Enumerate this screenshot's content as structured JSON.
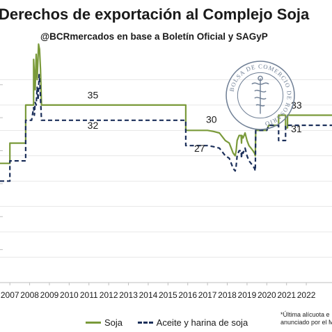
{
  "header": {
    "title": "Derechos de exportación al Complejo Soja",
    "subtitle": "@BCRmercados en base a Boletín Oficial y SAGyP"
  },
  "seal": {
    "text": "BOLSA DE COMERCIO DE ROSARIO",
    "color": "#6f7f95"
  },
  "footnote": {
    "line1": "*Última alícuota e",
    "line2": "anunciado por el M"
  },
  "colors": {
    "soja": "#7a9a3a",
    "aceite": "#1b2f5a",
    "grid": "#d9d9d9",
    "axis": "#bfbfbf"
  },
  "chart_data": {
    "type": "line",
    "title": "Derechos de exportación al Complejo Soja",
    "xlabel": "",
    "ylabel": "",
    "xlim": [
      2006.5,
      2023.3
    ],
    "ylim": [
      0,
      45
    ],
    "grid": true,
    "legend_position": "bottom",
    "x_ticks": [
      2007,
      2008,
      2009,
      2010,
      2011,
      2012,
      2013,
      2014,
      2015,
      2016,
      2017,
      2018,
      2019,
      2020,
      2021,
      2022
    ],
    "series": [
      {
        "name": "Soja",
        "color": "#7a9a3a",
        "dash": "solid",
        "points": [
          [
            2006.5,
            23.5
          ],
          [
            2007.0,
            23.5
          ],
          [
            2007.0,
            27.5
          ],
          [
            2007.8,
            27.5
          ],
          [
            2007.8,
            35
          ],
          [
            2008.2,
            35
          ],
          [
            2008.2,
            44
          ],
          [
            2008.28,
            38
          ],
          [
            2008.33,
            45
          ],
          [
            2008.38,
            40
          ],
          [
            2008.45,
            47
          ],
          [
            2008.5,
            46
          ],
          [
            2008.55,
            42
          ],
          [
            2008.6,
            35
          ],
          [
            2015.9,
            35
          ],
          [
            2015.9,
            30
          ],
          [
            2017.0,
            30
          ],
          [
            2017.3,
            29.8
          ],
          [
            2017.6,
            29.5
          ],
          [
            2017.9,
            28
          ],
          [
            2018.1,
            27.5
          ],
          [
            2018.2,
            26.5
          ],
          [
            2018.3,
            25.5
          ],
          [
            2018.4,
            25
          ],
          [
            2018.45,
            26
          ],
          [
            2018.5,
            28
          ],
          [
            2018.55,
            28.5
          ],
          [
            2018.6,
            29
          ],
          [
            2018.7,
            29
          ],
          [
            2018.72,
            27.5
          ],
          [
            2018.74,
            29
          ],
          [
            2018.8,
            28.5
          ],
          [
            2018.9,
            29.5
          ],
          [
            2019.0,
            28
          ],
          [
            2019.1,
            27
          ],
          [
            2019.2,
            26.5
          ],
          [
            2019.3,
            26
          ],
          [
            2019.38,
            25.5
          ],
          [
            2019.42,
            25
          ],
          [
            2019.44,
            30
          ],
          [
            2020.0,
            30
          ],
          [
            2020.1,
            31
          ],
          [
            2020.6,
            31
          ],
          [
            2020.6,
            33
          ],
          [
            2020.95,
            33
          ],
          [
            2020.95,
            30.5
          ],
          [
            2021.05,
            30.5
          ],
          [
            2021.05,
            33
          ],
          [
            2023.3,
            33
          ]
        ]
      },
      {
        "name": "Aceite y harina de soja",
        "color": "#1b2f5a",
        "dash": "dashed",
        "points": [
          [
            2006.5,
            20
          ],
          [
            2007.0,
            20
          ],
          [
            2007.0,
            24
          ],
          [
            2007.8,
            24
          ],
          [
            2007.8,
            32
          ],
          [
            2008.1,
            32
          ],
          [
            2008.2,
            34.5
          ],
          [
            2008.24,
            33
          ],
          [
            2008.28,
            35.5
          ],
          [
            2008.33,
            35
          ],
          [
            2008.38,
            38.5
          ],
          [
            2008.43,
            36
          ],
          [
            2008.48,
            41
          ],
          [
            2008.52,
            39
          ],
          [
            2008.6,
            32
          ],
          [
            2015.9,
            32
          ],
          [
            2015.9,
            27
          ],
          [
            2017.0,
            27
          ],
          [
            2017.3,
            26.8
          ],
          [
            2017.6,
            26.5
          ],
          [
            2017.9,
            25
          ],
          [
            2018.1,
            24.5
          ],
          [
            2018.2,
            23.5
          ],
          [
            2018.3,
            22.5
          ],
          [
            2018.4,
            22
          ],
          [
            2018.45,
            23
          ],
          [
            2018.5,
            25
          ],
          [
            2018.55,
            25.5
          ],
          [
            2018.6,
            26
          ],
          [
            2018.7,
            26
          ],
          [
            2018.72,
            24.5
          ],
          [
            2018.74,
            26
          ],
          [
            2018.8,
            25.5
          ],
          [
            2018.9,
            26.5
          ],
          [
            2019.0,
            25
          ],
          [
            2019.1,
            24
          ],
          [
            2019.2,
            23.5
          ],
          [
            2019.3,
            23
          ],
          [
            2019.38,
            22.5
          ],
          [
            2019.42,
            22
          ],
          [
            2019.44,
            30
          ],
          [
            2020.0,
            30
          ],
          [
            2020.1,
            31
          ],
          [
            2020.6,
            31
          ],
          [
            2020.6,
            28
          ],
          [
            2020.95,
            28
          ],
          [
            2020.95,
            31
          ],
          [
            2023.3,
            31
          ]
        ]
      }
    ],
    "annotations": [
      {
        "text": "35",
        "x": 2011.2,
        "y": 36.3,
        "color": "#1a1a1a"
      },
      {
        "text": "32",
        "x": 2011.2,
        "y": 30.3,
        "color": "#1a1a1a"
      },
      {
        "text": "30",
        "x": 2017.2,
        "y": 31.5,
        "color": "#1a1a1a"
      },
      {
        "text": "27",
        "x": 2016.6,
        "y": 25.8,
        "color": "#1a1a1a"
      },
      {
        "text": "33",
        "x": 2021.5,
        "y": 34.3,
        "color": "#1a1a1a"
      },
      {
        "text": "31",
        "x": 2021.5,
        "y": 29.6,
        "color": "#1a1a1a"
      }
    ]
  }
}
